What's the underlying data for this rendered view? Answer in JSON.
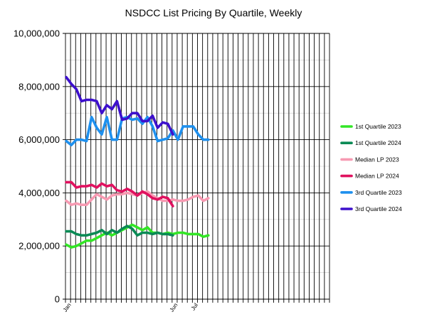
{
  "chart_data": {
    "type": "line",
    "title": "NSDCC List Pricing By Quartile, Weekly",
    "xlabel": "",
    "ylabel": "",
    "ylim": [
      0,
      10000000
    ],
    "y_ticks": [
      0,
      2000000,
      4000000,
      6000000,
      8000000,
      10000000
    ],
    "y_tick_labels": [
      "0",
      "2,000,000",
      "4,000,000",
      "6,000,000",
      "8,000,000",
      "10,000,000"
    ],
    "x_weeks": 52,
    "x_tick_labels": [
      {
        "week": 1,
        "label": "Jan"
      },
      {
        "week": 22,
        "label": "Jun"
      },
      {
        "week": 26,
        "label": "Jul"
      }
    ],
    "grid": true,
    "legend_position": "right",
    "series": [
      {
        "name": "1st Quartile 2023",
        "color": "#33e626",
        "values": [
          2050000,
          1950000,
          2000000,
          2100000,
          2200000,
          2200000,
          2300000,
          2400000,
          2500000,
          2400000,
          2500000,
          2600000,
          2700000,
          2800000,
          2700000,
          2600000,
          2700000,
          2500000,
          2500000,
          2450000,
          2500000,
          2450000,
          2500000,
          2500000,
          2450000,
          2450000,
          2450000,
          2350000,
          2400000
        ]
      },
      {
        "name": "1st Quartile 2024",
        "color": "#0a8a55",
        "values": [
          2550000,
          2550000,
          2450000,
          2400000,
          2400000,
          2450000,
          2500000,
          2600000,
          2450000,
          2600000,
          2500000,
          2650000,
          2750000,
          2650000,
          2400000,
          2500000,
          2500000,
          2450000,
          2500000,
          2450000,
          2450000,
          2400000
        ]
      },
      {
        "name": "Median LP 2023",
        "color": "#f79ab2",
        "values": [
          3700000,
          3550000,
          3600000,
          3550000,
          3550000,
          3750000,
          3950000,
          3850000,
          3750000,
          3900000,
          3950000,
          3950000,
          4000000,
          3950000,
          3900000,
          4000000,
          4050000,
          3900000,
          3800000,
          3700000,
          3700000,
          3750000,
          3700000,
          3700000,
          3750000,
          3850000,
          3900000,
          3700000,
          3800000
        ]
      },
      {
        "name": "Median LP 2024",
        "color": "#e0115f",
        "values": [
          4400000,
          4400000,
          4200000,
          4250000,
          4250000,
          4300000,
          4200000,
          4350000,
          4250000,
          4300000,
          4100000,
          4050000,
          4150000,
          4050000,
          3900000,
          4050000,
          3950000,
          3800000,
          3750000,
          3850000,
          3800000,
          3500000
        ]
      },
      {
        "name": "3rd Quartile 2023",
        "color": "#1e90ee",
        "values": [
          5950000,
          5800000,
          6000000,
          6000000,
          5950000,
          6850000,
          6450000,
          6200000,
          6850000,
          6000000,
          6000000,
          6800000,
          6850000,
          6750000,
          6800000,
          6600000,
          6850000,
          6500000,
          5950000,
          6000000,
          6050000,
          6350000,
          6000000,
          6500000,
          6500000,
          6500000,
          6200000,
          6000000,
          6000000
        ]
      },
      {
        "name": "3rd Quartile 2024",
        "color": "#3d10cc",
        "values": [
          8350000,
          8100000,
          7900000,
          7450000,
          7500000,
          7500000,
          7450000,
          7000000,
          7300000,
          7150000,
          7450000,
          6750000,
          6800000,
          7000000,
          7000000,
          6700000,
          6700000,
          6900000,
          6450000,
          6650000,
          6600000,
          6200000
        ]
      }
    ]
  }
}
